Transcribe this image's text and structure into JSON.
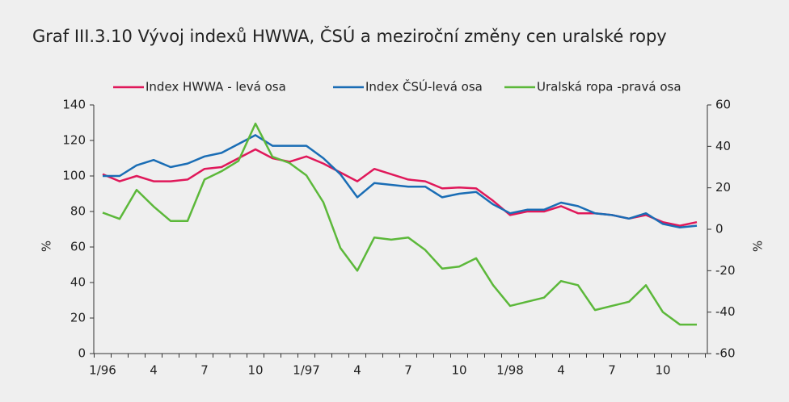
{
  "chart_data": {
    "type": "line",
    "title": "Graf III.3.10  Vývoj indexů HWWA, ČSÚ a meziroční změny cen uralské ropy",
    "y_label": "%",
    "y2_label": "%",
    "categories": [
      "1/96",
      null,
      null,
      "4",
      null,
      null,
      "7",
      null,
      null,
      "10",
      null,
      null,
      "1/97",
      null,
      null,
      "4",
      null,
      null,
      "7",
      null,
      null,
      "10",
      null,
      null,
      "1/98",
      null,
      null,
      "4",
      null,
      null,
      "7",
      null,
      null,
      "10",
      null,
      null
    ],
    "series": [
      {
        "name": "Index HWWA - levá osa",
        "color": "#e0185a",
        "axis": "y",
        "values": [
          101,
          97,
          100,
          97,
          97,
          98,
          104,
          105,
          110,
          115,
          110,
          108,
          111,
          107,
          102,
          97,
          104,
          101,
          98,
          97,
          93,
          93.5,
          93,
          86,
          78,
          80,
          80,
          83,
          79,
          79,
          78,
          76,
          78,
          74,
          72,
          74
        ]
      },
      {
        "name": "Index ČSÚ-levá osa",
        "color": "#1a6db5",
        "axis": "y",
        "values": [
          100,
          100,
          106,
          109,
          105,
          107,
          111,
          113,
          118,
          123,
          117,
          117,
          117,
          110,
          101,
          88,
          96,
          95,
          94,
          94,
          88,
          90,
          91,
          84,
          79,
          81,
          81,
          85,
          83,
          79,
          78,
          76,
          79,
          73,
          71,
          72
        ]
      },
      {
        "name": "Uralská ropa -pravá osa",
        "color": "#5cb83a",
        "axis": "y2",
        "values": [
          8,
          5,
          19,
          11,
          4,
          4,
          24,
          28,
          33,
          51,
          35,
          32,
          26,
          13,
          -9,
          -20,
          -4,
          -5,
          -4,
          -10,
          -19,
          -18,
          -14,
          -27,
          -37,
          -35,
          -33,
          -25,
          -27,
          -39,
          -37,
          -35,
          -27,
          -40,
          -46,
          -46
        ]
      }
    ],
    "ylim": [
      0,
      140
    ],
    "yticks": [
      0,
      20,
      40,
      60,
      80,
      100,
      120,
      140
    ],
    "y2lim": [
      -60,
      60
    ],
    "y2ticks": [
      -60,
      -40,
      -20,
      0,
      20,
      40,
      60
    ],
    "legend": "top",
    "grid": false
  }
}
